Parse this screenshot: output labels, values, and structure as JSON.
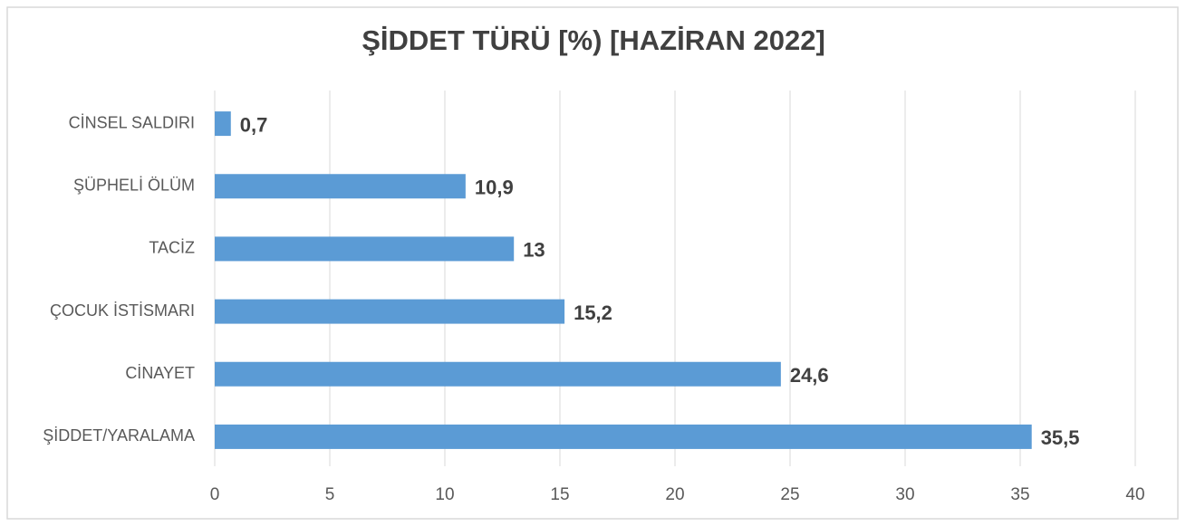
{
  "chart_data": {
    "type": "hbar",
    "title": "ŞİDDET TÜRÜ [%) [HAZİRAN 2022]",
    "categories": [
      "CİNSEL SALDIRI",
      "ŞÜPHELİ ÖLÜM",
      "TACİZ",
      "ÇOCUK İSTİSMARI",
      "CİNAYET",
      "ŞİDDET/YARALAMA"
    ],
    "values": [
      0.7,
      10.9,
      13,
      15.2,
      24.6,
      35.5
    ],
    "value_labels": [
      "0,7",
      "10,9",
      "13",
      "15,2",
      "24,6",
      "35,5"
    ],
    "color": "#5b9bd5",
    "xlim": [
      0,
      40
    ],
    "xticks": [
      0,
      5,
      10,
      15,
      20,
      25,
      30,
      35,
      40
    ],
    "grid": true
  }
}
